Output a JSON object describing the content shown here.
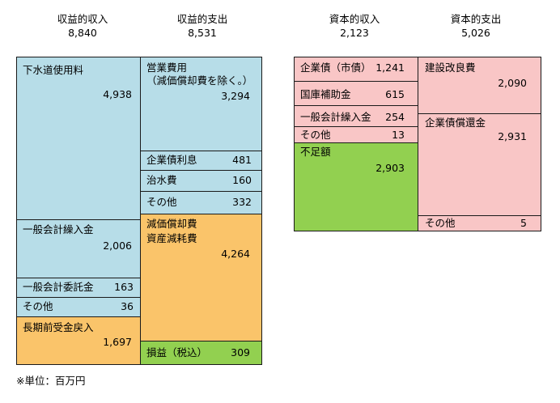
{
  "headers": {
    "rev_income": {
      "title": "収益的収入",
      "total": "8,840"
    },
    "rev_expense": {
      "title": "収益的支出",
      "total": "8,531"
    },
    "cap_income": {
      "title": "資本的収入",
      "total": "2,123"
    },
    "cap_expense": {
      "title": "資本的支出",
      "total": "5,026"
    }
  },
  "rev_income_items": [
    {
      "label": "下水道使用料",
      "value": "4,938"
    },
    {
      "label": "一般会計繰入金",
      "value": "2,006"
    },
    {
      "label": "一般会計委託金",
      "value": "163"
    },
    {
      "label": "その他",
      "value": "36"
    },
    {
      "label": "長期前受金戻入",
      "value": "1,697"
    }
  ],
  "rev_expense_items": [
    {
      "label": "営業費用",
      "label2": "（減価償却費を除く。）",
      "value": "3,294"
    },
    {
      "label": "企業債利息",
      "value": "481"
    },
    {
      "label": "治水費",
      "value": "160"
    },
    {
      "label": "その他",
      "value": "332"
    },
    {
      "label": "減価償却費",
      "label2": "資産減耗費",
      "value": "4,264"
    },
    {
      "label": "損益（税込）",
      "value": "309"
    }
  ],
  "cap_income_items": [
    {
      "label": "企業債（市債）",
      "value": "1,241"
    },
    {
      "label": "国庫補助金",
      "value": "615"
    },
    {
      "label": "一般会計繰入金",
      "value": "254"
    },
    {
      "label": "その他",
      "value": "13"
    },
    {
      "label": "不足額",
      "value": "2,903"
    }
  ],
  "cap_expense_items": [
    {
      "label": "建設改良費",
      "value": "2,090"
    },
    {
      "label": "企業債償還金",
      "value": "2,931"
    },
    {
      "label": "その他",
      "value": "5"
    }
  ],
  "note": "※単位：百万円",
  "colors": {
    "revenue": "#b7dde8",
    "depreciation": "#fac46a",
    "surplus": "#92d050",
    "capital": "#f9c6c6"
  }
}
